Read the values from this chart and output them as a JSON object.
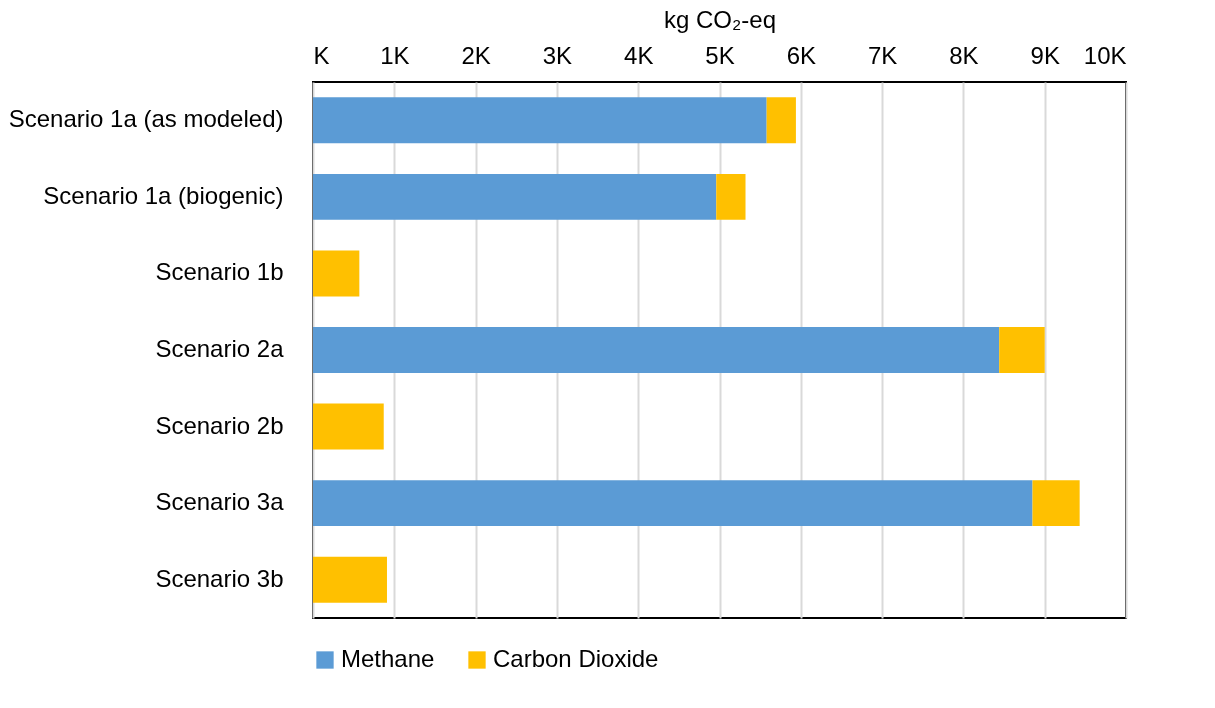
{
  "chart_data": {
    "type": "bar",
    "orientation": "horizontal",
    "stacked": true,
    "xlabel": "kg CO₂-eq",
    "categories": [
      "Scenario 1a (as modeled)",
      "Scenario 1a (biogenic)",
      "Scenario 1b",
      "Scenario 2a",
      "Scenario 2b",
      "Scenario 3a",
      "Scenario 3b"
    ],
    "series": [
      {
        "name": "Methane",
        "color": "#5b9bd5",
        "values": [
          5.58,
          4.96,
          null,
          8.44,
          null,
          8.85,
          null
        ]
      },
      {
        "name": "Carbon Dioxide",
        "color": "#ffc000",
        "values": [
          0.36,
          0.36,
          0.57,
          0.56,
          0.87,
          0.58,
          0.91
        ]
      }
    ],
    "xlim": [
      0,
      10
    ],
    "xticks": [
      {
        "value": 0,
        "label": "K"
      },
      {
        "value": 1,
        "label": "1K"
      },
      {
        "value": 2,
        "label": "2K"
      },
      {
        "value": 3,
        "label": "3K"
      },
      {
        "value": 4,
        "label": "4K"
      },
      {
        "value": 5,
        "label": "5K"
      },
      {
        "value": 6,
        "label": "6K"
      },
      {
        "value": 7,
        "label": "7K"
      },
      {
        "value": 8,
        "label": "8K"
      },
      {
        "value": 9,
        "label": "9K"
      },
      {
        "value": 10,
        "label": "10K"
      }
    ],
    "grid": "x",
    "legend": "bottom"
  }
}
